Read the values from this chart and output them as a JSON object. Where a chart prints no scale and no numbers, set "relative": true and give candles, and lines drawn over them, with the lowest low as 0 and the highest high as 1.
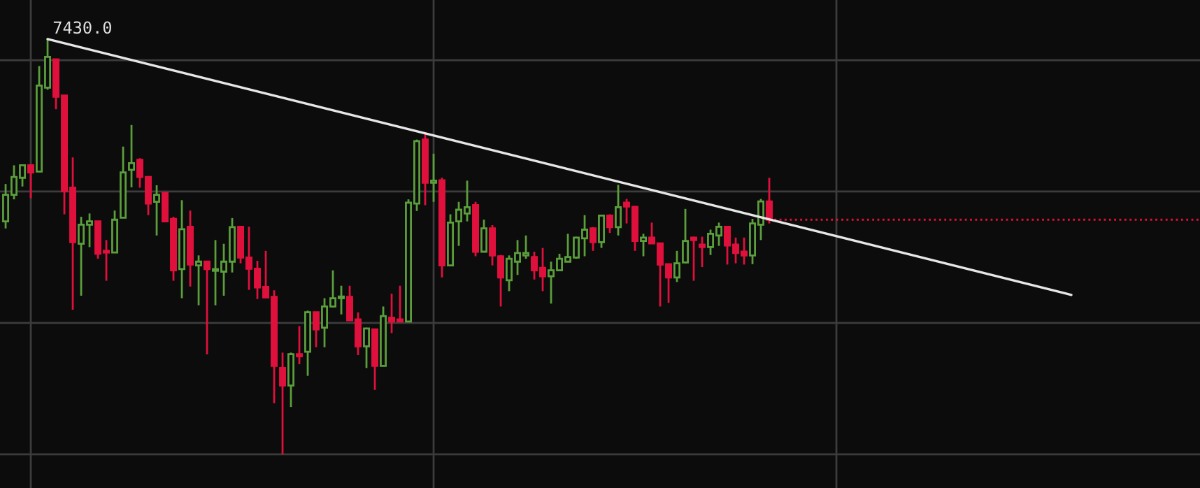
{
  "chart_data": {
    "type": "candlestick",
    "relative": true,
    "grid": true,
    "tick_labels": false,
    "categories": [
      null,
      null,
      null,
      null,
      null,
      null,
      null,
      null,
      null,
      null,
      null,
      null,
      null,
      null,
      null,
      null,
      null,
      null,
      null,
      null,
      null,
      null,
      null,
      null,
      null,
      null,
      null,
      null,
      null,
      null,
      null,
      null,
      null,
      null,
      null,
      null,
      null,
      null,
      null,
      null,
      null,
      null,
      null,
      null,
      null,
      null,
      null,
      null,
      null,
      null,
      null,
      null,
      null,
      null,
      null,
      null,
      null,
      null,
      null,
      null,
      null,
      null,
      null,
      null,
      null,
      null,
      null,
      null,
      null,
      null,
      null,
      null,
      null,
      null,
      null,
      null,
      null,
      null,
      null,
      null,
      null,
      null,
      null,
      null,
      null,
      null,
      null,
      null,
      null,
      null,
      null,
      null,
      null,
      null,
      null,
      null,
      null,
      null,
      null,
      null,
      null,
      null,
      null,
      null,
      null,
      null,
      null,
      null,
      null,
      null,
      null,
      null,
      null,
      null,
      null,
      null,
      null,
      null,
      null,
      null,
      null,
      null,
      null,
      null,
      null,
      null,
      null,
      null,
      null,
      null,
      null,
      null,
      null,
      null,
      null,
      null,
      null,
      null,
      null,
      null,
      null,
      null,
      null
    ],
    "series": [
      {
        "ohlc": [
          [
            0.561,
            0.651,
            0.544,
            0.625
          ],
          [
            0.625,
            0.696,
            0.614,
            0.668
          ],
          [
            0.666,
            0.696,
            0.645,
            0.696
          ],
          [
            0.696,
            0.696,
            0.617,
            0.679
          ],
          [
            0.681,
            0.935,
            0.681,
            0.888
          ],
          [
            0.883,
            1.0,
            0.878,
            0.957
          ],
          [
            0.951,
            0.951,
            0.831,
            0.861
          ],
          [
            0.864,
            0.864,
            0.578,
            0.634
          ],
          [
            0.642,
            0.715,
            0.348,
            0.511
          ],
          [
            0.507,
            0.572,
            0.382,
            0.553
          ],
          [
            0.553,
            0.58,
            0.499,
            0.561
          ],
          [
            0.561,
            0.561,
            0.471,
            0.483
          ],
          [
            0.49,
            0.516,
            0.418,
            0.486
          ],
          [
            0.486,
            0.587,
            0.486,
            0.565
          ],
          [
            0.57,
            0.741,
            0.569,
            0.679
          ],
          [
            0.685,
            0.793,
            0.643,
            0.701
          ],
          [
            0.709,
            0.713,
            0.642,
            0.668
          ],
          [
            0.668,
            0.67,
            0.576,
            0.604
          ],
          [
            0.608,
            0.648,
            0.527,
            0.625
          ],
          [
            0.629,
            0.632,
            0.561,
            0.561
          ],
          [
            0.567,
            0.572,
            0.418,
            0.443
          ],
          [
            0.446,
            0.612,
            0.376,
            0.542
          ],
          [
            0.548,
            0.587,
            0.404,
            0.457
          ],
          [
            0.455,
            0.479,
            0.359,
            0.464
          ],
          [
            0.464,
            0.464,
            0.241,
            0.446
          ],
          [
            0.442,
            0.516,
            0.359,
            0.444
          ],
          [
            0.44,
            0.507,
            0.382,
            0.464
          ],
          [
            0.464,
            0.569,
            0.438,
            0.547
          ],
          [
            0.548,
            0.55,
            0.46,
            0.474
          ],
          [
            0.474,
            0.548,
            0.396,
            0.447
          ],
          [
            0.447,
            0.466,
            0.374,
            0.402
          ],
          [
            0.403,
            0.49,
            0.378,
            0.378
          ],
          [
            0.379,
            0.395,
            0.123,
            0.213
          ],
          [
            0.208,
            0.245,
            0.0,
            0.166
          ],
          [
            0.166,
            0.245,
            0.114,
            0.241
          ],
          [
            0.241,
            0.309,
            0.217,
            0.236
          ],
          [
            0.247,
            0.346,
            0.189,
            0.342
          ],
          [
            0.342,
            0.342,
            0.258,
            0.301
          ],
          [
            0.305,
            0.376,
            0.258,
            0.356
          ],
          [
            0.356,
            0.443,
            0.354,
            0.376
          ],
          [
            0.376,
            0.406,
            0.337,
            0.379
          ],
          [
            0.379,
            0.406,
            0.323,
            0.323
          ],
          [
            0.325,
            0.342,
            0.239,
            0.26
          ],
          [
            0.26,
            0.305,
            0.208,
            0.303
          ],
          [
            0.301,
            0.303,
            0.155,
            0.213
          ],
          [
            0.213,
            0.356,
            0.213,
            0.333
          ],
          [
            0.329,
            0.387,
            0.292,
            0.32
          ],
          [
            0.325,
            0.406,
            0.318,
            0.32
          ],
          [
            0.32,
            0.614,
            0.32,
            0.606
          ],
          [
            0.604,
            0.758,
            0.586,
            0.754
          ],
          [
            0.758,
            0.774,
            0.6,
            0.654
          ],
          [
            0.654,
            0.724,
            0.608,
            0.659
          ],
          [
            0.66,
            0.666,
            0.426,
            0.455
          ],
          [
            0.455,
            0.578,
            0.455,
            0.558
          ],
          [
            0.561,
            0.608,
            0.502,
            0.589
          ],
          [
            0.58,
            0.659,
            0.561,
            0.595
          ],
          [
            0.6,
            0.608,
            0.477,
            0.488
          ],
          [
            0.488,
            0.565,
            0.488,
            0.544
          ],
          [
            0.544,
            0.552,
            0.455,
            0.479
          ],
          [
            0.477,
            0.48,
            0.356,
            0.426
          ],
          [
            0.419,
            0.479,
            0.393,
            0.471
          ],
          [
            0.464,
            0.516,
            0.432,
            0.485
          ],
          [
            0.479,
            0.527,
            0.471,
            0.485
          ],
          [
            0.475,
            0.488,
            0.421,
            0.443
          ],
          [
            0.449,
            0.497,
            0.393,
            0.429
          ],
          [
            0.429,
            0.464,
            0.363,
            0.443
          ],
          [
            0.443,
            0.483,
            0.441,
            0.471
          ],
          [
            0.464,
            0.531,
            0.464,
            0.475
          ],
          [
            0.474,
            0.524,
            0.471,
            0.522
          ],
          [
            0.52,
            0.576,
            0.477,
            0.541
          ],
          [
            0.544,
            0.547,
            0.49,
            0.511
          ],
          [
            0.511,
            0.576,
            0.497,
            0.575
          ],
          [
            0.575,
            0.578,
            0.533,
            0.547
          ],
          [
            0.547,
            0.649,
            0.527,
            0.595
          ],
          [
            0.606,
            0.615,
            0.556,
            0.597
          ],
          [
            0.596,
            0.598,
            0.49,
            0.514
          ],
          [
            0.514,
            0.531,
            0.477,
            0.522
          ],
          [
            0.522,
            0.558,
            0.507,
            0.508
          ],
          [
            0.508,
            0.508,
            0.356,
            0.457
          ],
          [
            0.458,
            0.458,
            0.365,
            0.426
          ],
          [
            0.426,
            0.49,
            0.415,
            0.46
          ],
          [
            0.462,
            0.591,
            0.46,
            0.514
          ],
          [
            0.522,
            0.524,
            0.418,
            0.516
          ],
          [
            0.505,
            0.524,
            0.451,
            0.499
          ],
          [
            0.499,
            0.541,
            0.48,
            0.531
          ],
          [
            0.527,
            0.558,
            0.502,
            0.548
          ],
          [
            0.548,
            0.548,
            0.457,
            0.503
          ],
          [
            0.505,
            0.522,
            0.46,
            0.485
          ],
          [
            0.488,
            0.522,
            0.457,
            0.479
          ],
          [
            0.479,
            0.567,
            0.458,
            0.556
          ],
          [
            0.553,
            0.615,
            0.516,
            0.609
          ],
          [
            0.609,
            0.666,
            0.556,
            0.565
          ],
          null,
          null,
          null,
          null,
          null,
          null,
          null,
          null,
          null,
          null,
          null,
          null,
          null,
          null,
          null,
          null,
          null,
          null,
          null,
          null,
          null,
          null,
          null,
          null,
          null,
          null,
          null,
          null,
          null,
          null,
          null,
          null,
          null,
          null,
          null,
          null,
          null,
          null,
          null,
          null,
          null,
          null,
          null,
          null,
          null,
          null,
          null,
          null,
          null,
          null,
          null
        ],
        "colors": [
          "#5b9e3c",
          "#5b9e3c",
          "#5b9e3c",
          "#e0103c",
          "#5b9e3c",
          "#5b9e3c",
          "#e0103c",
          "#e0103c",
          "#e0103c",
          "#5b9e3c",
          "#5b9e3c",
          "#e0103c",
          "#e0103c",
          "#5b9e3c",
          "#5b9e3c",
          "#5b9e3c",
          "#e0103c",
          "#e0103c",
          "#5b9e3c",
          "#e0103c",
          "#e0103c",
          "#5b9e3c",
          "#e0103c",
          "#5b9e3c",
          "#e0103c",
          "#5b9e3c",
          "#5b9e3c",
          "#5b9e3c",
          "#e0103c",
          "#e0103c",
          "#e0103c",
          "#e0103c",
          "#e0103c",
          "#e0103c",
          "#5b9e3c",
          "#e0103c",
          "#5b9e3c",
          "#e0103c",
          "#5b9e3c",
          "#5b9e3c",
          "#5b9e3c",
          "#e0103c",
          "#e0103c",
          "#5b9e3c",
          "#e0103c",
          "#5b9e3c",
          "#e0103c",
          "#e0103c",
          "#5b9e3c",
          "#5b9e3c",
          "#e0103c",
          "#5b9e3c",
          "#e0103c",
          "#5b9e3c",
          "#5b9e3c",
          "#5b9e3c",
          "#e0103c",
          "#5b9e3c",
          "#e0103c",
          "#e0103c",
          "#5b9e3c",
          "#5b9e3c",
          "#5b9e3c",
          "#e0103c",
          "#e0103c",
          "#5b9e3c",
          "#5b9e3c",
          "#5b9e3c",
          "#5b9e3c",
          "#5b9e3c",
          "#e0103c",
          "#5b9e3c",
          "#e0103c",
          "#5b9e3c",
          "#e0103c",
          "#e0103c",
          "#5b9e3c",
          "#e0103c",
          "#e0103c",
          "#e0103c",
          "#5b9e3c",
          "#5b9e3c",
          "#e0103c",
          "#e0103c",
          "#5b9e3c",
          "#5b9e3c",
          "#e0103c",
          "#e0103c",
          "#e0103c",
          "#5b9e3c",
          "#5b9e3c",
          "#e0103c",
          null,
          null,
          null,
          null,
          null,
          null,
          null,
          null,
          null,
          null,
          null,
          null,
          null,
          null,
          null,
          null,
          null,
          null,
          null,
          null,
          null,
          null,
          null,
          null,
          null,
          null,
          null,
          null,
          null,
          null,
          null,
          null,
          null,
          null,
          null,
          null,
          null,
          null,
          null,
          null,
          null,
          null,
          null,
          null,
          null,
          null,
          null,
          null,
          null,
          null,
          null
        ]
      },
      {
        "type": "line",
        "color": "#e6e6e6",
        "values": [
          null,
          null,
          null,
          null,
          null,
          1.0,
          null,
          null,
          null,
          null,
          null,
          null,
          null,
          null,
          null,
          null,
          null,
          null,
          null,
          null,
          null,
          null,
          null,
          null,
          null,
          null,
          null,
          null,
          null,
          null,
          null,
          null,
          null,
          null,
          null,
          null,
          null,
          null,
          null,
          null,
          null,
          null,
          null,
          null,
          null,
          null,
          null,
          null,
          null,
          null,
          null,
          null,
          null,
          null,
          null,
          null,
          null,
          null,
          null,
          null,
          null,
          null,
          null,
          null,
          null,
          null,
          null,
          null,
          null,
          null,
          null,
          null,
          null,
          null,
          null,
          null,
          null,
          null,
          null,
          null,
          null,
          null,
          null,
          null,
          null,
          null,
          null,
          null,
          null,
          null,
          null,
          null,
          null,
          null,
          null,
          null,
          null,
          null,
          null,
          null,
          null,
          null,
          null,
          null,
          null,
          null,
          null,
          null,
          null,
          null,
          null,
          null,
          null,
          null,
          null,
          null,
          null,
          null,
          null,
          null,
          null,
          null,
          null,
          null,
          null,
          null,
          null,
          0.384,
          null,
          null,
          null,
          null,
          null,
          null,
          null,
          null,
          null,
          null,
          null,
          null,
          null,
          null,
          null
        ]
      }
    ],
    "ref_lines": [
      {
        "axis": "y",
        "value": 0.565,
        "color": "#e0103c",
        "line_style": "dotted"
      }
    ],
    "annotations": [
      "7430.0"
    ]
  }
}
